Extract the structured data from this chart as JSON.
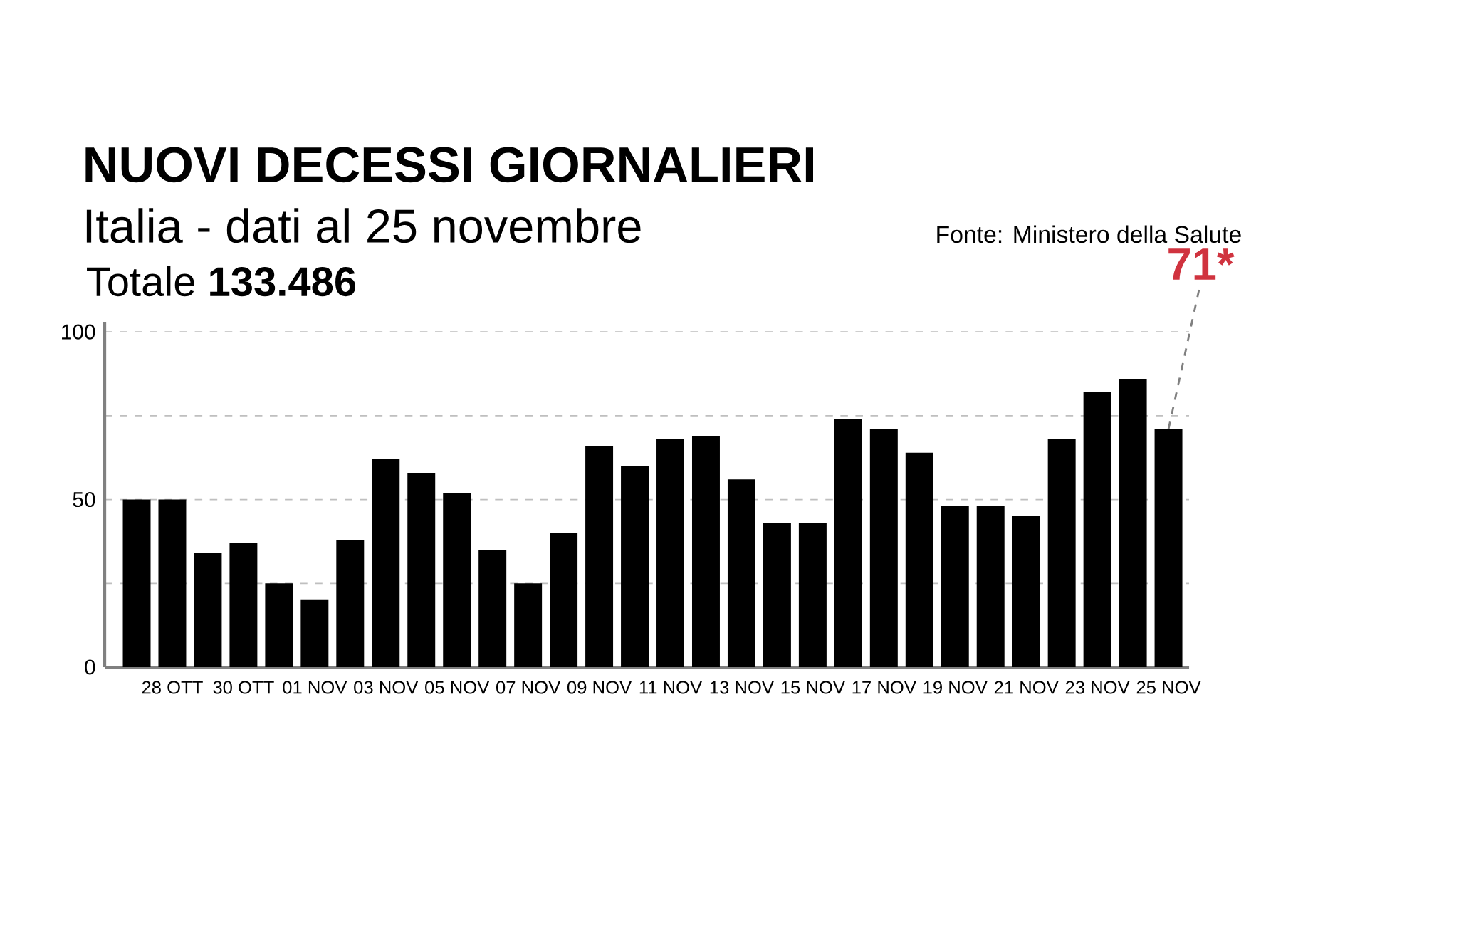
{
  "chart_data": {
    "type": "bar",
    "title": "NUOVI DECESSI GIORNALIERI",
    "subtitle": "Italia - dati al 25 novembre",
    "categories": [
      null,
      "28 OTT",
      null,
      "30 OTT",
      null,
      "01 NOV",
      null,
      "03 NOV",
      null,
      "05 NOV",
      null,
      "07 NOV",
      null,
      "09 NOV",
      null,
      "11 NOV",
      null,
      "13 NOV",
      null,
      "15 NOV",
      null,
      "17 NOV",
      null,
      "19 NOV",
      null,
      "21 NOV",
      null,
      "23 NOV",
      null,
      "25 NOV"
    ],
    "values": [
      50,
      50,
      34,
      37,
      25,
      20,
      38,
      62,
      58,
      52,
      35,
      25,
      40,
      66,
      60,
      68,
      69,
      56,
      43,
      43,
      74,
      71,
      64,
      48,
      48,
      45,
      68,
      82,
      86,
      71
    ],
    "color": "#000000",
    "ylim": [
      0,
      103
    ],
    "yticks": [
      0,
      {
        "value": 25,
        "label": null
      },
      50,
      {
        "value": 75,
        "label": null
      },
      100
    ],
    "grid": "y",
    "annotations": [
      {
        "text": "71*",
        "x": "25 NOV",
        "y": 71
      },
      "Totale **133.486**",
      "Fonte: Ministero della Salute"
    ]
  }
}
